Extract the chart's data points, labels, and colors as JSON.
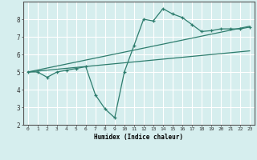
{
  "xlabel": "Humidex (Indice chaleur)",
  "ylabel": "",
  "background_color": "#d6eeee",
  "grid_color": "#ffffff",
  "line_color": "#2e7d6e",
  "xlim": [
    -0.5,
    23.5
  ],
  "ylim": [
    2,
    9
  ],
  "xticks": [
    0,
    1,
    2,
    3,
    4,
    5,
    6,
    7,
    8,
    9,
    10,
    11,
    12,
    13,
    14,
    15,
    16,
    17,
    18,
    19,
    20,
    21,
    22,
    23
  ],
  "yticks": [
    2,
    3,
    4,
    5,
    6,
    7,
    8
  ],
  "main_x": [
    0,
    1,
    2,
    3,
    4,
    5,
    6,
    7,
    8,
    9,
    10,
    11,
    12,
    13,
    14,
    15,
    16,
    17,
    18,
    19,
    20,
    21,
    22,
    23
  ],
  "main_y": [
    5.0,
    5.0,
    4.7,
    5.0,
    5.1,
    5.2,
    5.3,
    3.7,
    2.9,
    2.4,
    5.0,
    6.5,
    8.0,
    7.9,
    8.6,
    8.3,
    8.1,
    7.7,
    7.3,
    7.35,
    7.45,
    7.45,
    7.45,
    7.55
  ],
  "trend1_x": [
    0,
    23
  ],
  "trend1_y": [
    5.0,
    7.6
  ],
  "trend2_x": [
    0,
    23
  ],
  "trend2_y": [
    5.0,
    6.2
  ]
}
